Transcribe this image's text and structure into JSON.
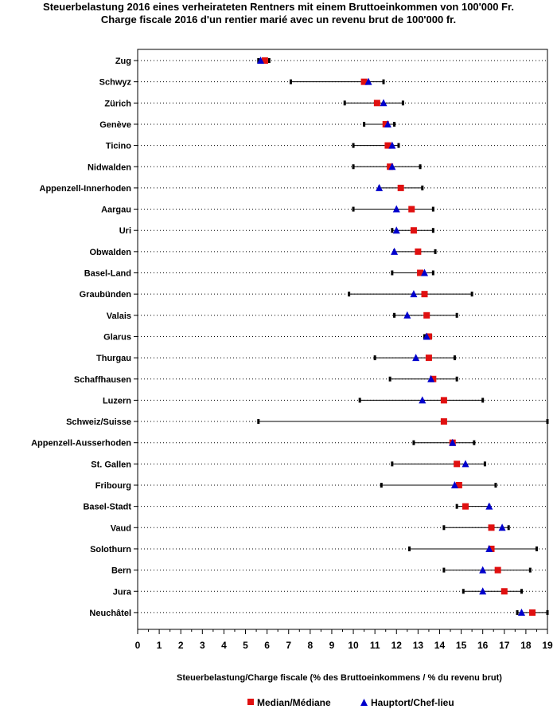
{
  "titles": {
    "line1": "Steuerbelastung 2016 eines verheirateten Rentners mit einem Bruttoeinkommen von 100'000 Fr.",
    "line2": "Charge fiscale 2016 d'un rentier marié avec un revenu brut de 100'000 fr."
  },
  "colors": {
    "median": "#e01010",
    "hauptort": "#0000cc",
    "range": "#000000"
  },
  "chart_data": {
    "type": "range-dot",
    "xlabel": "Steuerbelastung/Charge fiscale (% des Bruttoeinkommens / % du revenu brut)",
    "xlim": [
      0,
      19
    ],
    "xticks": [
      "0",
      "1",
      "2",
      "3",
      "4",
      "5",
      "6",
      "7",
      "8",
      "9",
      "10",
      "11",
      "12",
      "13",
      "14",
      "15",
      "16",
      "17",
      "18",
      "19"
    ],
    "legend": {
      "median": "Median/Médiane",
      "hauptort": "Hauptort/Chef-lieu",
      "position": "bottom"
    },
    "rows": [
      {
        "name": "Zug",
        "min": 5.6,
        "max": 6.1,
        "median": 5.9,
        "hauptort": 5.7
      },
      {
        "name": "Schwyz",
        "min": 7.1,
        "max": 11.4,
        "median": 10.5,
        "hauptort": 10.7
      },
      {
        "name": "Zürich",
        "min": 9.6,
        "max": 12.3,
        "median": 11.1,
        "hauptort": 11.4
      },
      {
        "name": "Genève",
        "min": 10.5,
        "max": 11.9,
        "median": 11.5,
        "hauptort": 11.6
      },
      {
        "name": "Ticino",
        "min": 10.0,
        "max": 12.1,
        "median": 11.6,
        "hauptort": 11.8
      },
      {
        "name": "Nidwalden",
        "min": 10.0,
        "max": 13.1,
        "median": 11.7,
        "hauptort": 11.8
      },
      {
        "name": "Appenzell-Innerhoden",
        "min": 11.2,
        "max": 13.2,
        "median": 12.2,
        "hauptort": 11.2
      },
      {
        "name": "Aargau",
        "min": 10.0,
        "max": 13.7,
        "median": 12.7,
        "hauptort": 12.0
      },
      {
        "name": "Uri",
        "min": 11.8,
        "max": 13.7,
        "median": 12.8,
        "hauptort": 12.0
      },
      {
        "name": "Obwalden",
        "min": 11.9,
        "max": 13.8,
        "median": 13.0,
        "hauptort": 11.9
      },
      {
        "name": "Basel-Land",
        "min": 11.8,
        "max": 13.7,
        "median": 13.1,
        "hauptort": 13.3
      },
      {
        "name": "Graubünden",
        "min": 9.8,
        "max": 15.5,
        "median": 13.3,
        "hauptort": 12.8
      },
      {
        "name": "Valais",
        "min": 11.9,
        "max": 14.8,
        "median": 13.4,
        "hauptort": 12.5
      },
      {
        "name": "Glarus",
        "min": 13.3,
        "max": 13.6,
        "median": 13.5,
        "hauptort": 13.4
      },
      {
        "name": "Thurgau",
        "min": 11.0,
        "max": 14.7,
        "median": 13.5,
        "hauptort": 12.9
      },
      {
        "name": "Schaffhausen",
        "min": 11.7,
        "max": 14.8,
        "median": 13.7,
        "hauptort": 13.6
      },
      {
        "name": "Luzern",
        "min": 10.3,
        "max": 16.0,
        "median": 14.2,
        "hauptort": 13.2
      },
      {
        "name": "Schweiz/Suisse",
        "min": 5.6,
        "max": 19.0,
        "median": 14.2,
        "hauptort": null
      },
      {
        "name": "Appenzell-Ausserhoden",
        "min": 12.8,
        "max": 15.6,
        "median": 14.6,
        "hauptort": 14.6
      },
      {
        "name": "St. Gallen",
        "min": 11.8,
        "max": 16.1,
        "median": 14.8,
        "hauptort": 15.2
      },
      {
        "name": "Fribourg",
        "min": 11.3,
        "max": 16.6,
        "median": 14.9,
        "hauptort": 14.7
      },
      {
        "name": "Basel-Stadt",
        "min": 14.8,
        "max": 16.3,
        "median": 15.2,
        "hauptort": 16.3
      },
      {
        "name": "Vaud",
        "min": 14.2,
        "max": 17.2,
        "median": 16.4,
        "hauptort": 16.9
      },
      {
        "name": "Solothurn",
        "min": 12.6,
        "max": 18.5,
        "median": 16.4,
        "hauptort": 16.3
      },
      {
        "name": "Bern",
        "min": 14.2,
        "max": 18.2,
        "median": 16.7,
        "hauptort": 16.0
      },
      {
        "name": "Jura",
        "min": 15.1,
        "max": 17.8,
        "median": 17.0,
        "hauptort": 16.0
      },
      {
        "name": "Neuchâtel",
        "min": 17.6,
        "max": 19.0,
        "median": 18.3,
        "hauptort": 17.8
      }
    ]
  }
}
